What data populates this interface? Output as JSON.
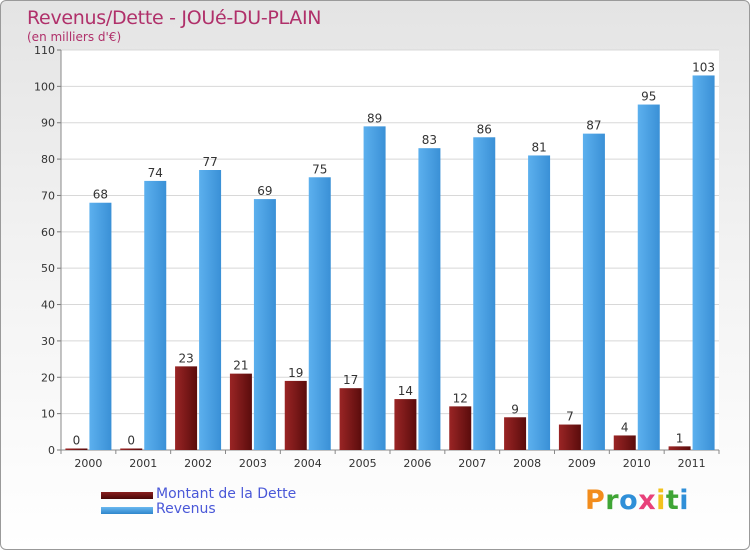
{
  "title": "Revenus/Dette - JOUé-DU-PLAIN",
  "subtitle": "(en milliers d'€)",
  "chart_data": {
    "type": "bar",
    "categories": [
      "2000",
      "2001",
      "2002",
      "2003",
      "2004",
      "2005",
      "2006",
      "2007",
      "2008",
      "2009",
      "2010",
      "2011"
    ],
    "series": [
      {
        "name": "Montant de la Dette",
        "values": [
          0,
          0,
          23,
          21,
          19,
          17,
          14,
          12,
          9,
          7,
          4,
          1
        ],
        "color": "#7a1a1a"
      },
      {
        "name": "Revenus",
        "values": [
          68,
          74,
          77,
          69,
          75,
          89,
          83,
          86,
          81,
          87,
          95,
          103
        ],
        "color": "#4aa3e6"
      }
    ],
    "ylim": [
      0,
      110
    ],
    "yticks": [
      0,
      10,
      20,
      30,
      40,
      50,
      60,
      70,
      80,
      90,
      100,
      110
    ],
    "grid": true,
    "legend": "bottom-left"
  },
  "legend": {
    "debt_label": "Montant de la Dette",
    "revenue_label": "Revenus"
  },
  "logo": {
    "letters": [
      "P",
      "r",
      "o",
      "x",
      "i",
      "t",
      "i"
    ],
    "colors": [
      "#f28c1c",
      "#3fa535",
      "#2f8fd8",
      "#e8417a",
      "#f2c21c",
      "#3fa535",
      "#2f8fd8"
    ]
  }
}
